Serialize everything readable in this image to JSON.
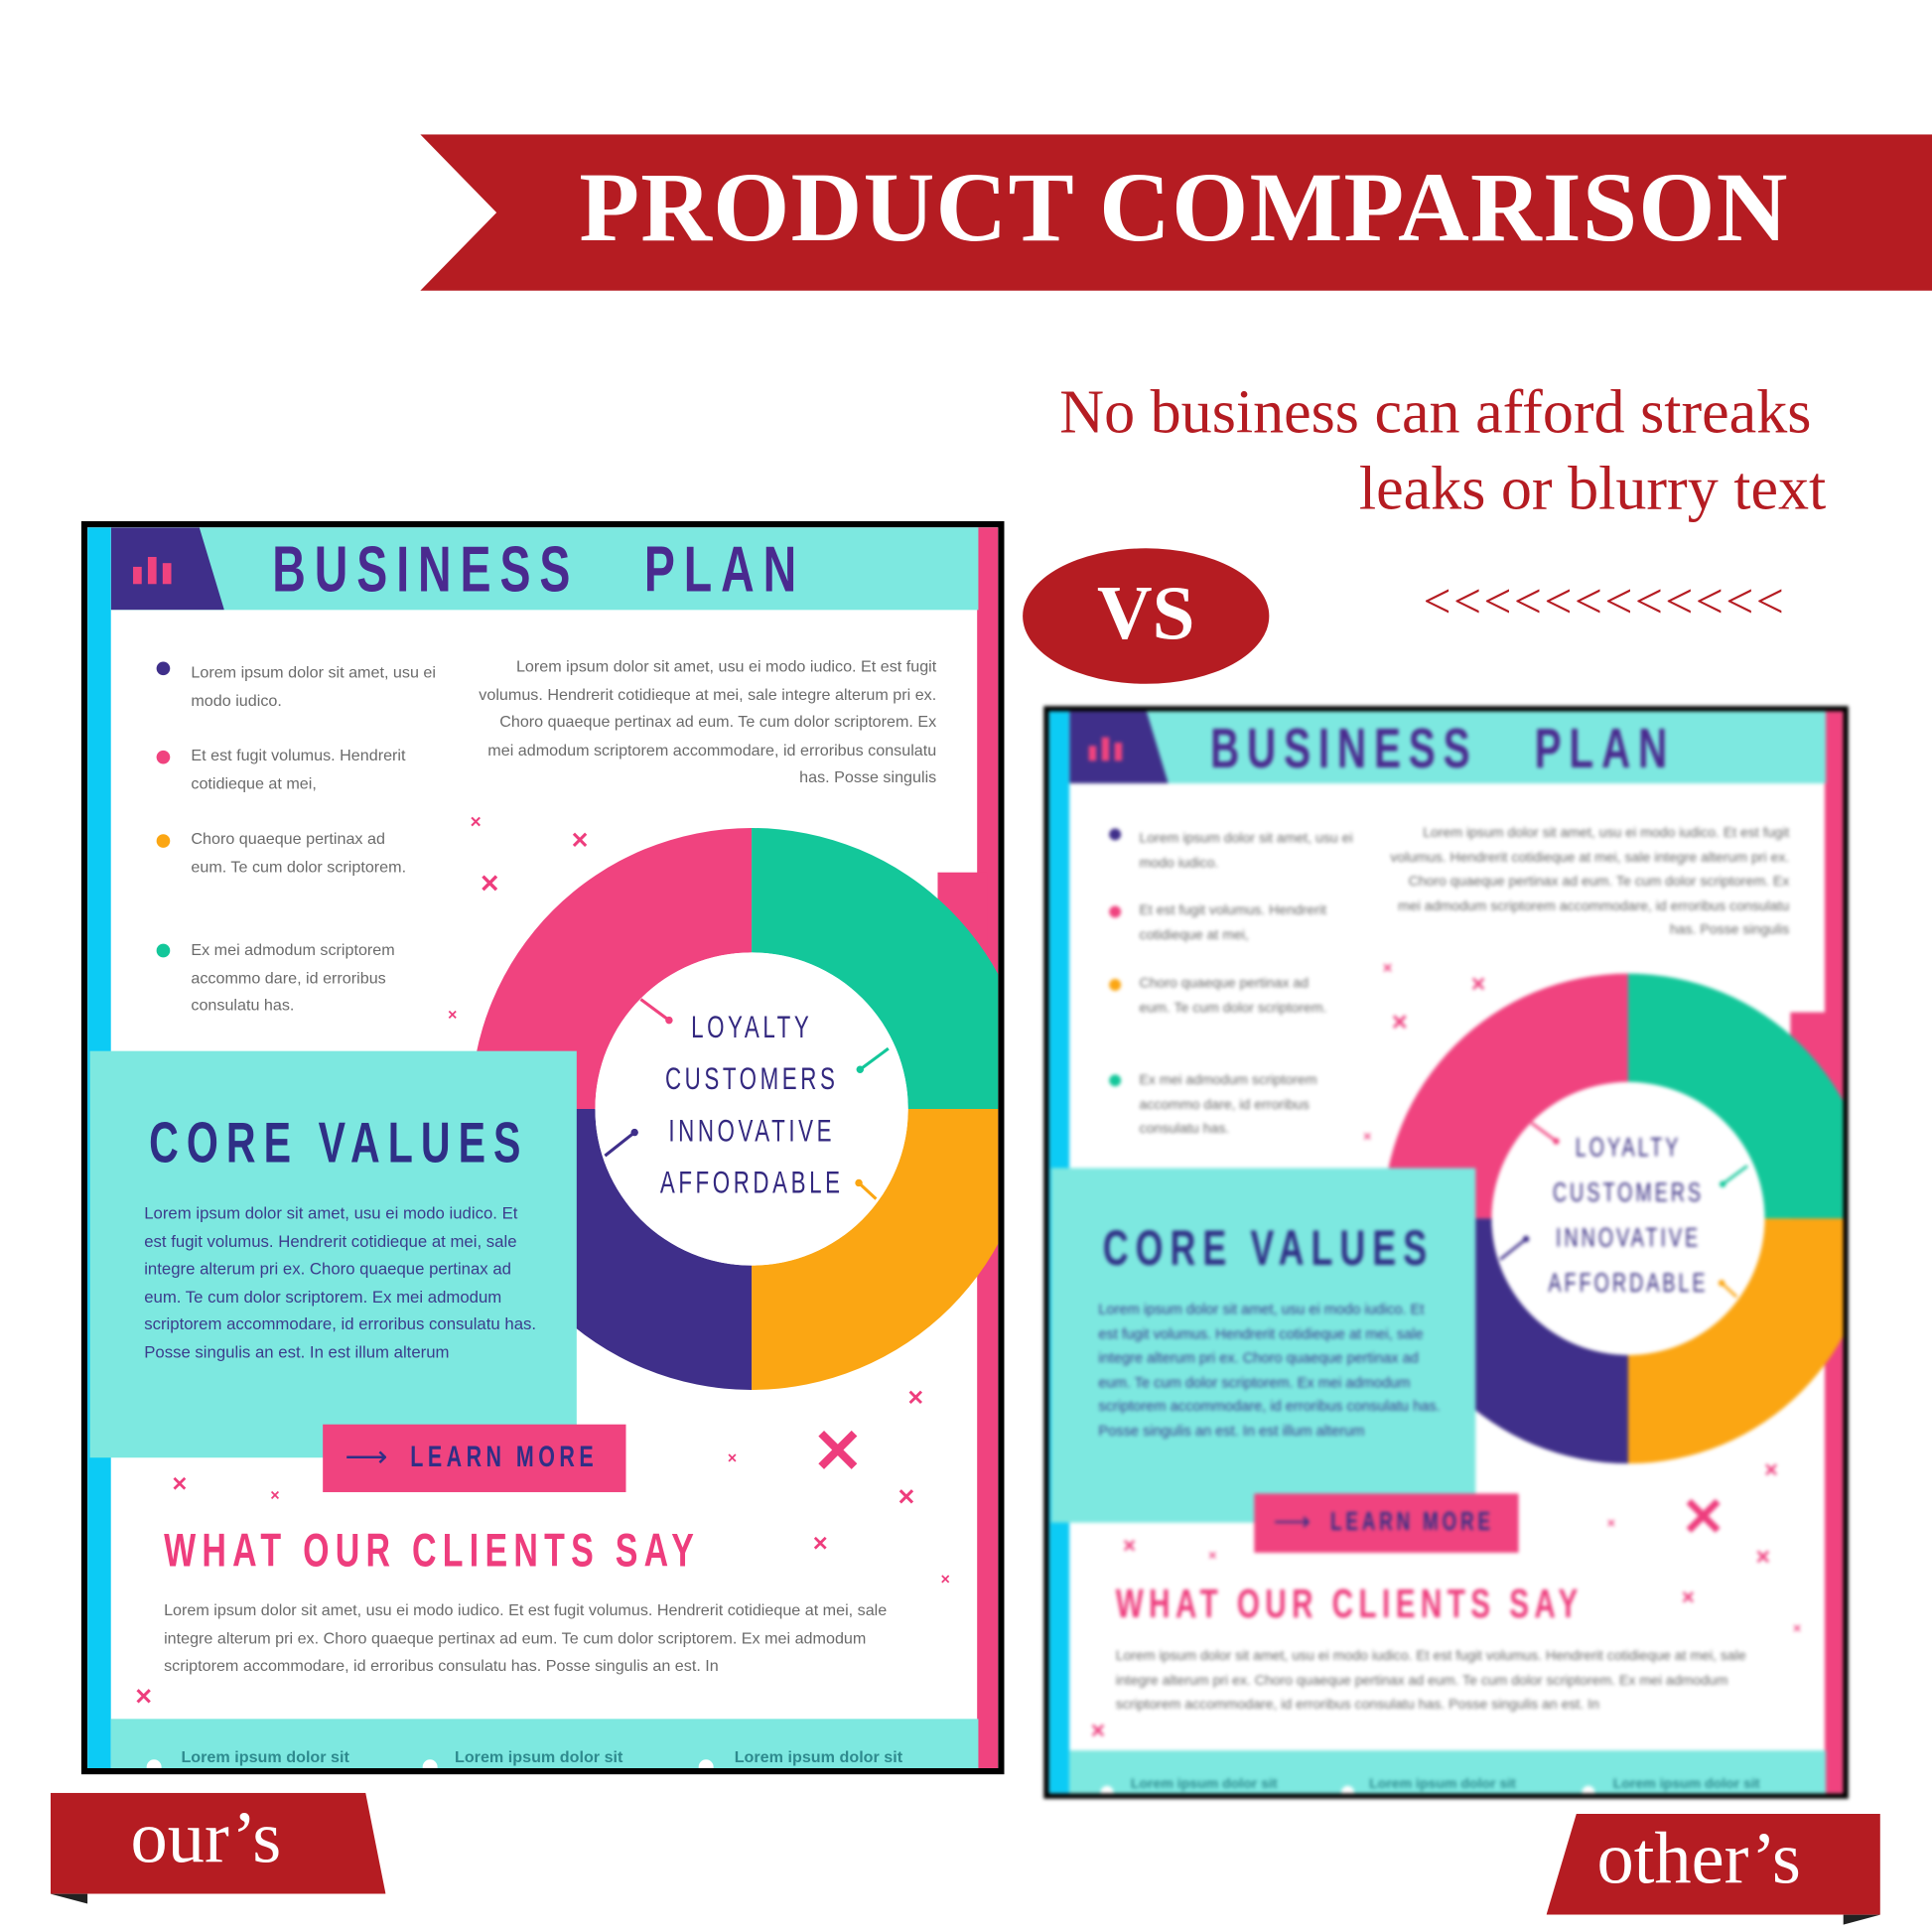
{
  "header": {
    "title": "PRODUCT COMPARISON",
    "subtitle_line1": "No business can afford streaks",
    "subtitle_line2": "leaks or blurry text",
    "arrows": "<<<<<<<<<<<<"
  },
  "vs": "VS",
  "labels": {
    "ours": "our’s",
    "others": "other’s"
  },
  "colors": {
    "red": "#b51c22",
    "teal": "#7de8e0",
    "pink": "#f0437f",
    "green": "#13c79a",
    "orange": "#fba613",
    "purple": "#3f2f8a",
    "cyan": "#0ccbf5"
  },
  "card": {
    "icon": "bar-chart-icon",
    "title": "BUSINESS   PLAN",
    "bullets": [
      {
        "text": "Lorem ipsum dolor sit amet, usu ei modo iudico.",
        "color": "#3f2f8a"
      },
      {
        "text": "Et est fugit volumus. Hendrerit cotidieque at mei,",
        "color": "#f0437f"
      },
      {
        "text": "Choro quaeque pertinax ad eum. Te cum dolor scriptorem.",
        "color": "#fba613"
      },
      {
        "text": "Ex mei admodum scriptorem accommo dare, id erroribus consulatu has.",
        "color": "#13c79a"
      }
    ],
    "paragraph": "Lorem ipsum dolor sit amet, usu ei modo iudico. Et est fugit volumus. Hendrerit cotidieque at mei, sale integre alterum pri ex. Choro quaeque pertinax ad eum. Te cum dolor scriptorem. Ex mei admodum scriptorem accommodare, id erroribus consulatu has. Posse singulis",
    "donut_labels": [
      "LOYALTY",
      "CUSTOMERS",
      "INNOVATIVE",
      "AFFORDABLE"
    ],
    "core_title": "CORE VALUES",
    "core_text": "Lorem ipsum dolor sit amet, usu ei modo iudico. Et est fugit volumus. Hendrerit cotidieque at mei, sale integre alterum pri ex. Choro quaeque pertinax ad eum. Te cum dolor scriptorem. Ex mei admodum scriptorem accommodare, id erroribus consulatu has. Posse singulis an est. In est illum alterum",
    "learn_more": "LEARN MORE",
    "clients_title": "WHAT OUR CLIENTS SAY",
    "clients_text": "Lorem ipsum dolor sit amet, usu ei modo iudico. Et est fugit volumus. Hendrerit cotidieque at mei, sale integre alterum pri ex. Choro quaeque pertinax ad eum. Te cum dolor scriptorem. Ex mei admodum scriptorem accommodare, id erroribus consulatu has. Posse singulis an est. In",
    "footer": [
      "Lorem ipsum dolor sit",
      "Lorem ipsum dolor sit",
      "Lorem ipsum dolor sit"
    ]
  }
}
